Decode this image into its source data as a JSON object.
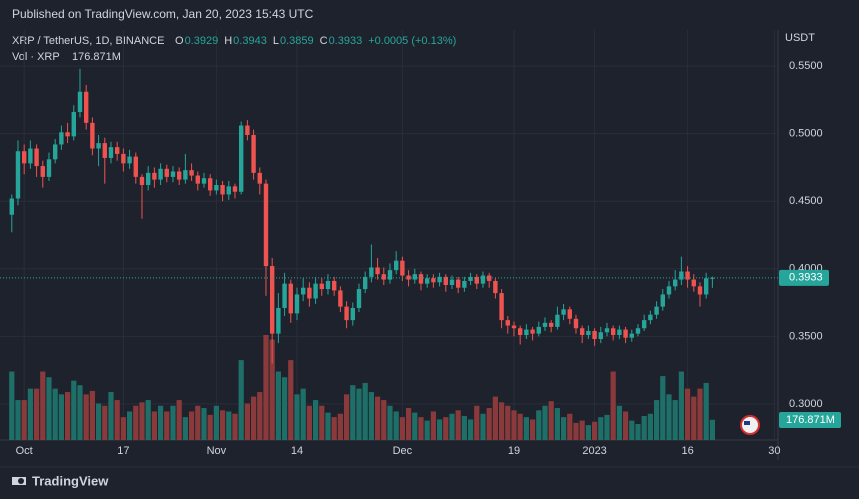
{
  "header": {
    "published": "Published on TradingView.com, Jan 20, 2023 15:43 UTC"
  },
  "footer": {
    "brand": "TradingView"
  },
  "chart_data": {
    "type": "candlestick",
    "symbol": "XRP / TetherUS, 1D, BINANCE",
    "ohlc_legend": [
      {
        "label": "O",
        "value": 0.3929
      },
      {
        "label": "H",
        "value": 0.3943
      },
      {
        "label": "L",
        "value": 0.3859
      },
      {
        "label": "C",
        "value": 0.3933
      }
    ],
    "change": "+0.0005 (+0.13%)",
    "volume_legend": "Vol · XRP",
    "volume_label": "176.871M",
    "y_axis_label": "USDT",
    "up_color": "#26a69a",
    "down_color": "#ef5350",
    "volume_up_color": "#1f6f69",
    "volume_down_color": "#8b3a3c",
    "grid": true,
    "ylim": [
      0.2733,
      0.5767
    ],
    "yticks": [
      {
        "value": 0.3,
        "label": "0.3000"
      },
      {
        "value": 0.35,
        "label": "0.3500"
      },
      {
        "value": 0.4,
        "label": "0.4000"
      },
      {
        "value": 0.45,
        "label": "0.4500"
      },
      {
        "value": 0.5,
        "label": "0.5000"
      },
      {
        "value": 0.55,
        "label": "0.5500"
      }
    ],
    "xlim": [
      -1.9,
      123.1
    ],
    "xticks": [
      {
        "value": 2,
        "label": "Oct"
      },
      {
        "value": 18,
        "label": "17"
      },
      {
        "value": 33,
        "label": "Nov"
      },
      {
        "value": 46,
        "label": "14"
      },
      {
        "value": 63,
        "label": "Dec"
      },
      {
        "value": 81,
        "label": "19"
      },
      {
        "value": 94,
        "label": "2023"
      },
      {
        "value": 109,
        "label": "16"
      },
      {
        "value": 123,
        "label": "30"
      }
    ],
    "ohlc": [
      [
        0.44,
        0.455,
        0.427,
        0.452
      ],
      [
        0.452,
        0.495,
        0.447,
        0.487
      ],
      [
        0.487,
        0.492,
        0.47,
        0.478
      ],
      [
        0.478,
        0.495,
        0.474,
        0.489
      ],
      [
        0.489,
        0.492,
        0.468,
        0.476
      ],
      [
        0.476,
        0.48,
        0.46,
        0.468
      ],
      [
        0.468,
        0.486,
        0.465,
        0.481
      ],
      [
        0.481,
        0.496,
        0.478,
        0.492
      ],
      [
        0.492,
        0.506,
        0.488,
        0.501
      ],
      [
        0.501,
        0.508,
        0.493,
        0.498
      ],
      [
        0.498,
        0.521,
        0.495,
        0.516
      ],
      [
        0.516,
        0.548,
        0.512,
        0.531
      ],
      [
        0.531,
        0.536,
        0.503,
        0.508
      ],
      [
        0.508,
        0.512,
        0.484,
        0.489
      ],
      [
        0.489,
        0.499,
        0.476,
        0.493
      ],
      [
        0.493,
        0.497,
        0.463,
        0.482
      ],
      [
        0.482,
        0.494,
        0.478,
        0.49
      ],
      [
        0.49,
        0.494,
        0.48,
        0.485
      ],
      [
        0.485,
        0.489,
        0.472,
        0.478
      ],
      [
        0.478,
        0.488,
        0.474,
        0.483
      ],
      [
        0.483,
        0.486,
        0.463,
        0.468
      ],
      [
        0.468,
        0.47,
        0.437,
        0.462
      ],
      [
        0.462,
        0.476,
        0.458,
        0.471
      ],
      [
        0.471,
        0.475,
        0.46,
        0.466
      ],
      [
        0.466,
        0.478,
        0.462,
        0.474
      ],
      [
        0.474,
        0.477,
        0.464,
        0.468
      ],
      [
        0.468,
        0.476,
        0.464,
        0.472
      ],
      [
        0.472,
        0.475,
        0.462,
        0.466
      ],
      [
        0.466,
        0.485,
        0.463,
        0.473
      ],
      [
        0.473,
        0.478,
        0.465,
        0.469
      ],
      [
        0.469,
        0.472,
        0.458,
        0.463
      ],
      [
        0.463,
        0.471,
        0.46,
        0.467
      ],
      [
        0.467,
        0.47,
        0.454,
        0.458
      ],
      [
        0.458,
        0.466,
        0.455,
        0.462
      ],
      [
        0.462,
        0.465,
        0.45,
        0.455
      ],
      [
        0.455,
        0.465,
        0.451,
        0.461
      ],
      [
        0.461,
        0.463,
        0.452,
        0.457
      ],
      [
        0.457,
        0.509,
        0.455,
        0.506
      ],
      [
        0.506,
        0.51,
        0.495,
        0.499
      ],
      [
        0.499,
        0.503,
        0.466,
        0.471
      ],
      [
        0.471,
        0.475,
        0.455,
        0.463
      ],
      [
        0.463,
        0.466,
        0.38,
        0.402
      ],
      [
        0.402,
        0.408,
        0.33,
        0.352
      ],
      [
        0.352,
        0.382,
        0.345,
        0.371
      ],
      [
        0.371,
        0.397,
        0.365,
        0.389
      ],
      [
        0.389,
        0.392,
        0.36,
        0.367
      ],
      [
        0.367,
        0.386,
        0.362,
        0.381
      ],
      [
        0.381,
        0.393,
        0.376,
        0.386
      ],
      [
        0.386,
        0.39,
        0.372,
        0.378
      ],
      [
        0.378,
        0.394,
        0.374,
        0.389
      ],
      [
        0.389,
        0.393,
        0.38,
        0.385
      ],
      [
        0.385,
        0.396,
        0.381,
        0.391
      ],
      [
        0.391,
        0.394,
        0.38,
        0.384
      ],
      [
        0.384,
        0.387,
        0.368,
        0.372
      ],
      [
        0.372,
        0.376,
        0.356,
        0.362
      ],
      [
        0.362,
        0.375,
        0.358,
        0.371
      ],
      [
        0.371,
        0.389,
        0.368,
        0.385
      ],
      [
        0.385,
        0.398,
        0.382,
        0.394
      ],
      [
        0.394,
        0.418,
        0.39,
        0.401
      ],
      [
        0.401,
        0.408,
        0.392,
        0.396
      ],
      [
        0.396,
        0.401,
        0.388,
        0.392
      ],
      [
        0.392,
        0.404,
        0.389,
        0.399
      ],
      [
        0.399,
        0.413,
        0.396,
        0.406
      ],
      [
        0.406,
        0.409,
        0.391,
        0.395
      ],
      [
        0.395,
        0.399,
        0.387,
        0.392
      ],
      [
        0.392,
        0.4,
        0.389,
        0.396
      ],
      [
        0.396,
        0.398,
        0.384,
        0.389
      ],
      [
        0.389,
        0.396,
        0.386,
        0.393
      ],
      [
        0.393,
        0.396,
        0.386,
        0.39
      ],
      [
        0.39,
        0.397,
        0.387,
        0.394
      ],
      [
        0.394,
        0.396,
        0.383,
        0.388
      ],
      [
        0.388,
        0.395,
        0.385,
        0.392
      ],
      [
        0.392,
        0.394,
        0.382,
        0.386
      ],
      [
        0.386,
        0.394,
        0.383,
        0.391
      ],
      [
        0.391,
        0.397,
        0.388,
        0.394
      ],
      [
        0.394,
        0.396,
        0.385,
        0.389
      ],
      [
        0.389,
        0.398,
        0.386,
        0.395
      ],
      [
        0.395,
        0.397,
        0.386,
        0.391
      ],
      [
        0.391,
        0.393,
        0.378,
        0.382
      ],
      [
        0.382,
        0.385,
        0.356,
        0.362
      ],
      [
        0.362,
        0.365,
        0.352,
        0.358
      ],
      [
        0.358,
        0.361,
        0.35,
        0.356
      ],
      [
        0.356,
        0.358,
        0.344,
        0.351
      ],
      [
        0.351,
        0.359,
        0.348,
        0.355
      ],
      [
        0.355,
        0.357,
        0.347,
        0.352
      ],
      [
        0.352,
        0.361,
        0.35,
        0.357
      ],
      [
        0.357,
        0.364,
        0.354,
        0.36
      ],
      [
        0.36,
        0.362,
        0.353,
        0.357
      ],
      [
        0.357,
        0.372,
        0.355,
        0.366
      ],
      [
        0.366,
        0.374,
        0.362,
        0.37
      ],
      [
        0.37,
        0.372,
        0.359,
        0.363
      ],
      [
        0.363,
        0.366,
        0.352,
        0.356
      ],
      [
        0.356,
        0.358,
        0.345,
        0.351
      ],
      [
        0.351,
        0.358,
        0.348,
        0.354
      ],
      [
        0.354,
        0.356,
        0.343,
        0.348
      ],
      [
        0.348,
        0.357,
        0.345,
        0.353
      ],
      [
        0.353,
        0.36,
        0.35,
        0.356
      ],
      [
        0.356,
        0.358,
        0.347,
        0.351
      ],
      [
        0.351,
        0.358,
        0.348,
        0.355
      ],
      [
        0.355,
        0.357,
        0.345,
        0.349
      ],
      [
        0.349,
        0.355,
        0.346,
        0.352
      ],
      [
        0.352,
        0.359,
        0.35,
        0.356
      ],
      [
        0.356,
        0.366,
        0.354,
        0.362
      ],
      [
        0.362,
        0.369,
        0.359,
        0.366
      ],
      [
        0.366,
        0.376,
        0.363,
        0.372
      ],
      [
        0.372,
        0.385,
        0.369,
        0.381
      ],
      [
        0.381,
        0.391,
        0.378,
        0.387
      ],
      [
        0.387,
        0.399,
        0.384,
        0.392
      ],
      [
        0.392,
        0.409,
        0.388,
        0.398
      ],
      [
        0.398,
        0.402,
        0.386,
        0.392
      ],
      [
        0.392,
        0.396,
        0.383,
        0.387
      ],
      [
        0.387,
        0.39,
        0.372,
        0.381
      ],
      [
        0.381,
        0.397,
        0.378,
        0.3929
      ],
      [
        0.3929,
        0.3943,
        0.3859,
        0.3933
      ]
    ],
    "volume": [
      600,
      350,
      350,
      450,
      450,
      600,
      550,
      450,
      400,
      420,
      520,
      480,
      400,
      430,
      320,
      300,
      420,
      350,
      200,
      250,
      300,
      330,
      350,
      250,
      300,
      250,
      300,
      350,
      200,
      250,
      300,
      280,
      220,
      300,
      260,
      250,
      230,
      700,
      320,
      380,
      420,
      920,
      880,
      600,
      550,
      700,
      400,
      450,
      300,
      350,
      300,
      240,
      200,
      230,
      400,
      480,
      450,
      500,
      420,
      380,
      350,
      300,
      250,
      200,
      280,
      240,
      200,
      170,
      250,
      180,
      200,
      230,
      260,
      210,
      180,
      300,
      230,
      280,
      380,
      330,
      300,
      260,
      230,
      200,
      180,
      260,
      300,
      340,
      280,
      200,
      230,
      150,
      170,
      130,
      160,
      200,
      220,
      600,
      300,
      250,
      170,
      140,
      210,
      230,
      350,
      560,
      400,
      350,
      600,
      450,
      380,
      450,
      500,
      176.871
    ]
  }
}
